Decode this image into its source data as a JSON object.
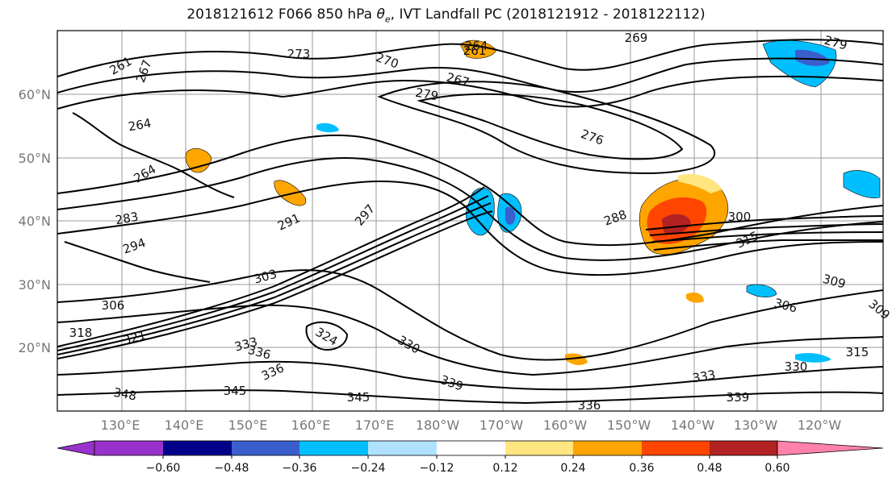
{
  "title": {
    "prefix": "2018121612 F066 850 hPa ",
    "var_sym": "θ",
    "var_sub": "e",
    "suffix": ", IVT Landfall PC (2018121912 - 2018122112)"
  },
  "axes": {
    "lat_labels": [
      "60°N",
      "50°N",
      "40°N",
      "30°N",
      "20°N"
    ],
    "lon_labels": [
      "130°E",
      "140°E",
      "150°E",
      "160°E",
      "170°E",
      "180°W",
      "170°W",
      "160°W",
      "150°W",
      "140°W",
      "130°W",
      "120°W"
    ]
  },
  "colorbar": {
    "ticks": [
      "−0.60",
      "−0.48",
      "−0.36",
      "−0.24",
      "−0.12",
      "0.12",
      "0.24",
      "0.36",
      "0.48",
      "0.60"
    ],
    "colors": [
      "#9932cc",
      "#00008b",
      "#3a5fcd",
      "#00bfff",
      "#b0e2ff",
      "#ffffff",
      "#ffe680",
      "#ffa500",
      "#ff4500",
      "#b22222",
      "#ff82ab"
    ]
  },
  "contour_labels": [
    "261",
    "267",
    "273",
    "270",
    "267",
    "264",
    "279",
    "276",
    "261",
    "264",
    "283",
    "291",
    "297",
    "288",
    "300",
    "315",
    "294",
    "303",
    "306",
    "318",
    "321",
    "324",
    "330",
    "333",
    "336",
    "336",
    "348",
    "345",
    "345",
    "339",
    "336",
    "333",
    "339",
    "330",
    "315",
    "309",
    "306",
    "264",
    "279",
    "269",
    "309"
  ]
}
